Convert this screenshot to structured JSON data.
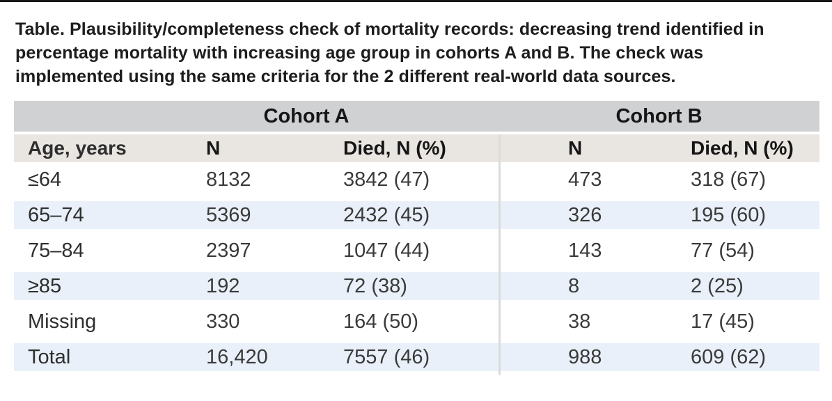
{
  "caption": "Table. Plausibility/completeness check of mortality records: decreasing trend identified in percentage mortality with increasing age group in cohorts A and B. The check was implemented using the same criteria for the 2 different real-world data sources.",
  "table": {
    "group_headers": {
      "cohort_a": "Cohort A",
      "cohort_b": "Cohort B"
    },
    "columns": [
      "Age, years",
      "N",
      "Died, N (%)",
      "N",
      "Died, N (%)"
    ],
    "rows": [
      [
        "≤64",
        "8132",
        "3842 (47)",
        "473",
        "318 (67)"
      ],
      [
        "65–74",
        "5369",
        "2432 (45)",
        "326",
        "195 (60)"
      ],
      [
        "75–84",
        "2397",
        "1047 (44)",
        "143",
        "77 (54)"
      ],
      [
        "≥85",
        "192",
        "72 (38)",
        "8",
        "2 (25)"
      ],
      [
        "Missing",
        "330",
        "164 (50)",
        "38",
        "17 (45)"
      ],
      [
        "Total",
        "16,420",
        "7557 (46)",
        "988",
        "609 (62)"
      ]
    ],
    "colors": {
      "cohort_band": "#d0d1d3",
      "column_header_band": "#e9e6e2",
      "zebra_stripe": "#e9f0f9",
      "divider": "#dbdbdb",
      "top_bar": "#161616",
      "text": "#3a3a3a"
    }
  }
}
